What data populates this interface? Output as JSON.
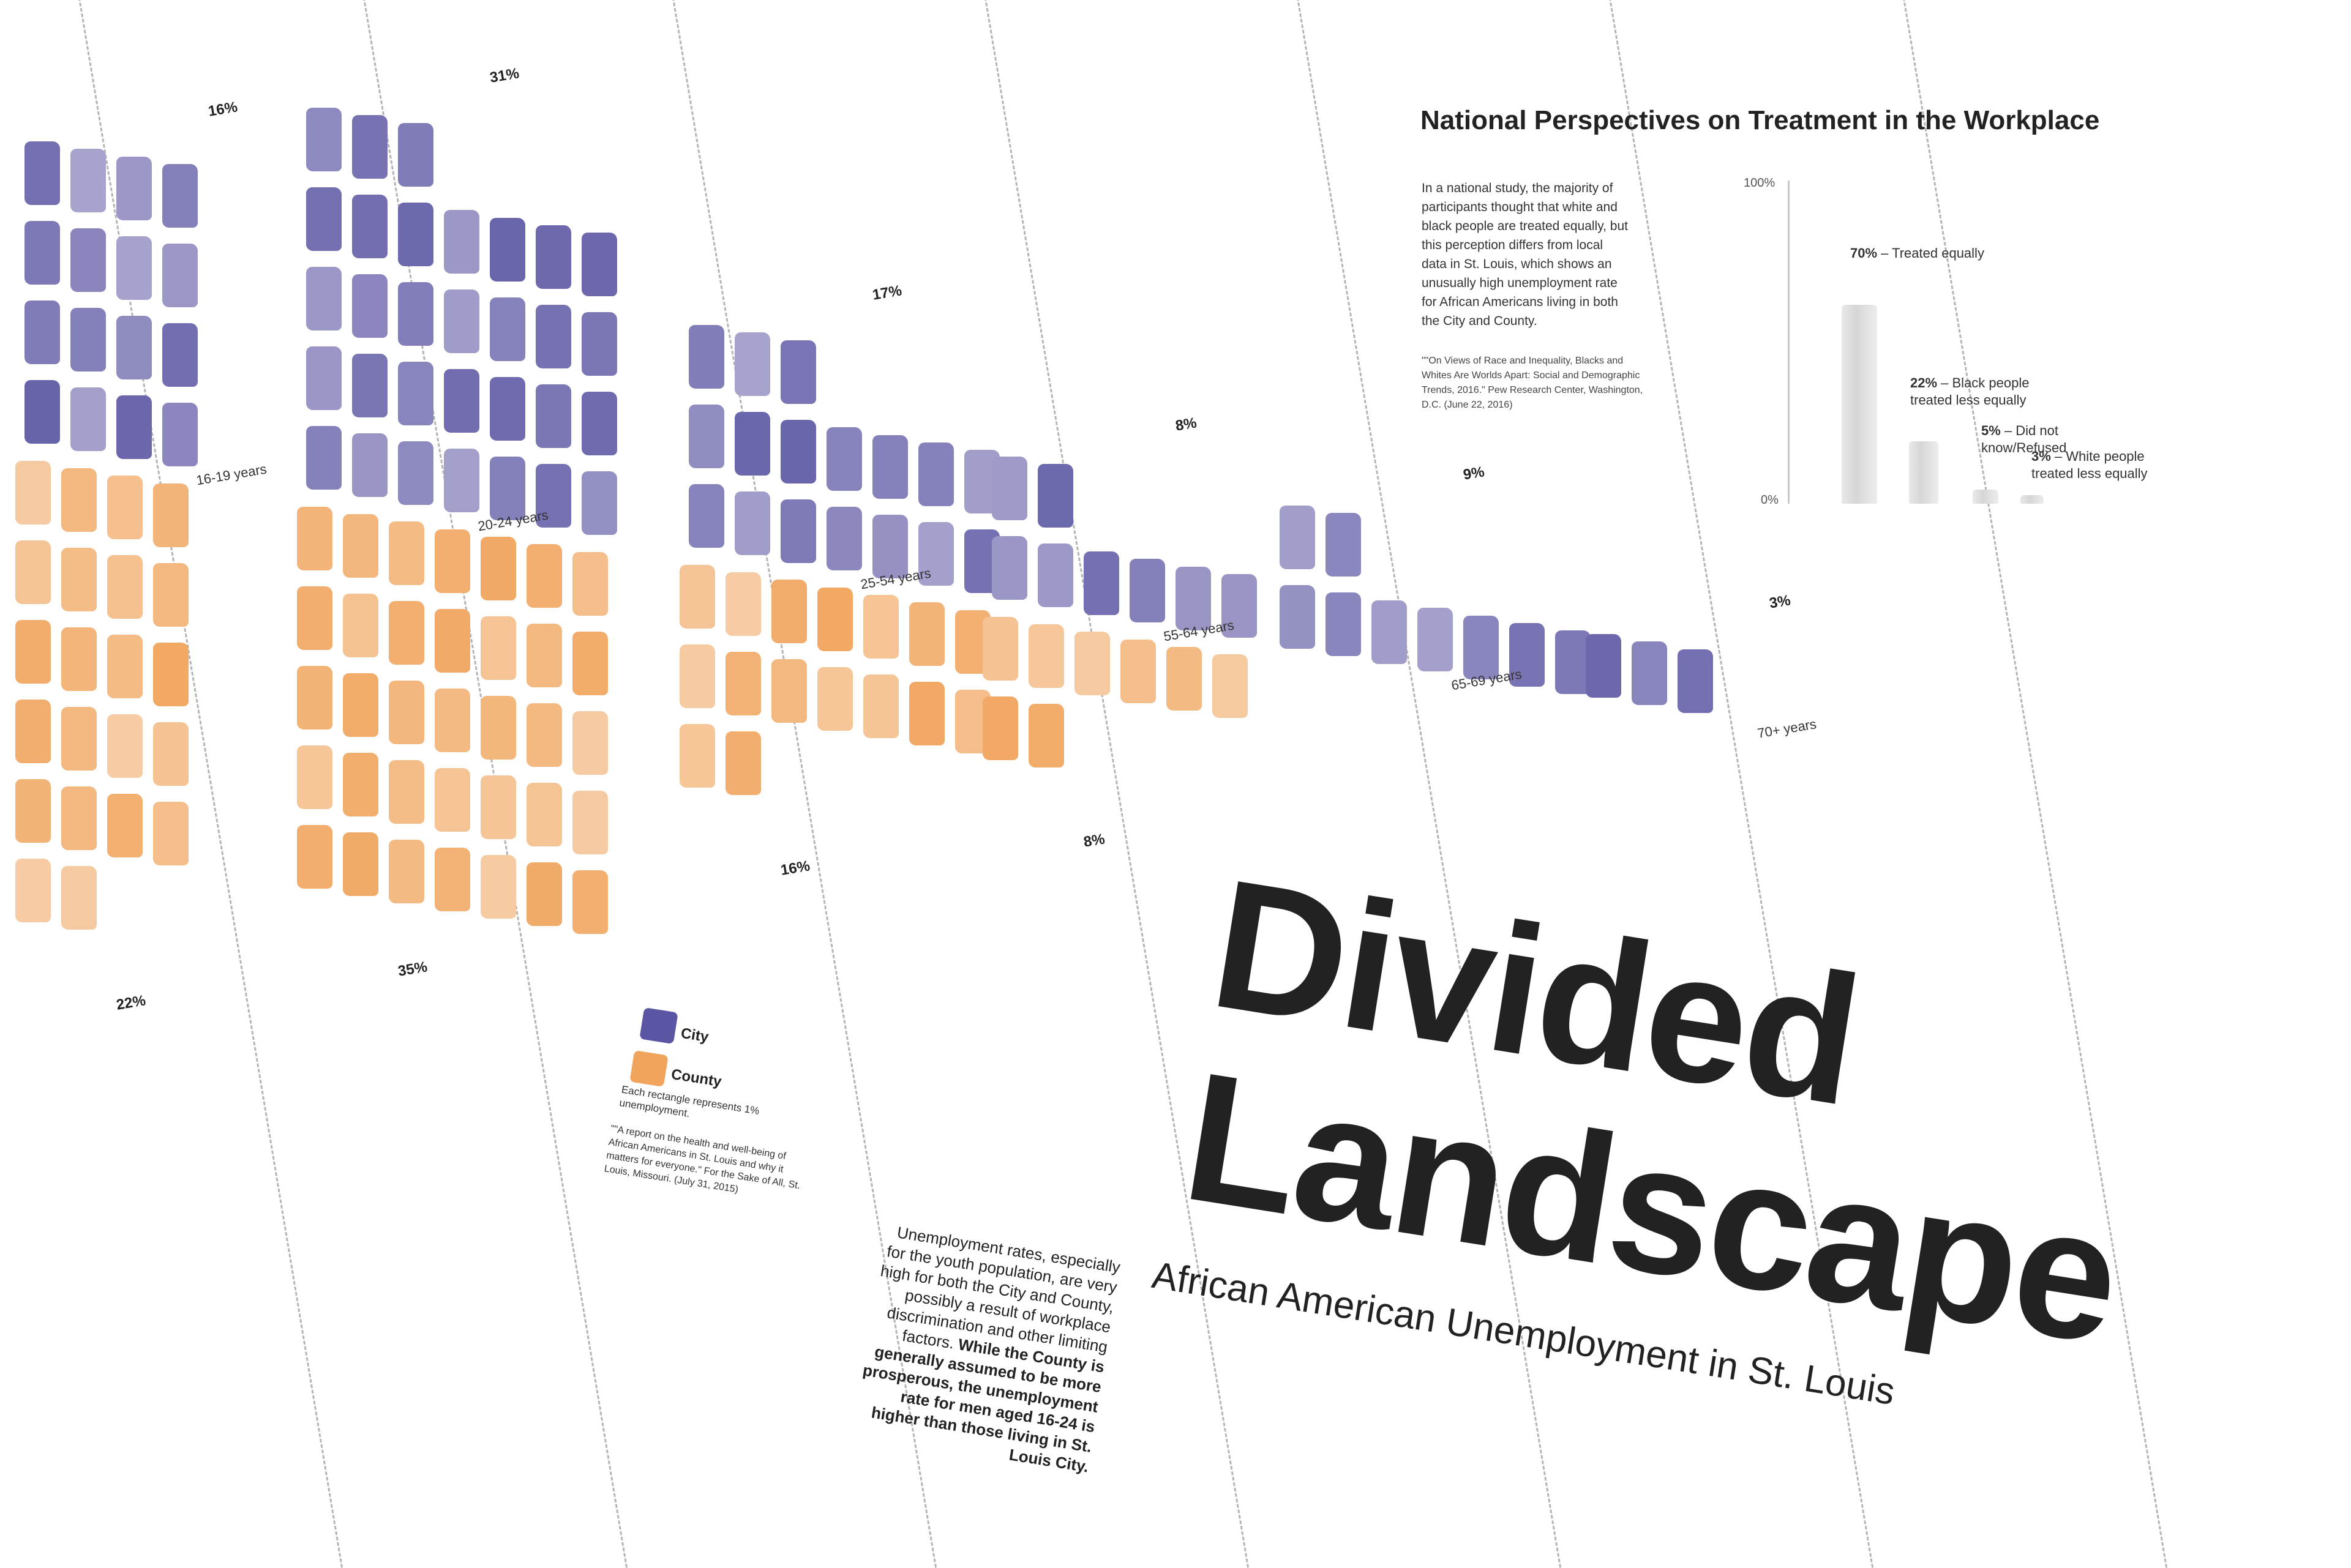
{
  "title": {
    "line1": "Divided",
    "line2": "Landscape",
    "subtitle": "African American Unemployment in St. Louis"
  },
  "national": {
    "title": "National Perspectives on Treatment in the Workplace",
    "body": "In a national study, the majority of participants thought that white and black people are treated equally, but this perception differs from local data in St. Louis, which shows an unusually high unemployment rate for African Americans living in both the City and County.",
    "source": "\"\"On Views of Race and Inequality, Blacks and Whites Are Worlds Apart: Social and Demographic Trends, 2016.\" Pew Research Center, Washington, D.C. (June 22, 2016)",
    "axis_top": "100%",
    "axis_bottom": "0%",
    "items": [
      {
        "pct": "70%",
        "label": "Treated equally",
        "value": 70
      },
      {
        "pct": "22%",
        "label": "Black people treated less equally",
        "value": 22
      },
      {
        "pct": "5%",
        "label": "Did not know/Refused",
        "value": 5
      },
      {
        "pct": "3%",
        "label": "White people treated less equally",
        "value": 3
      }
    ]
  },
  "legend": {
    "city": "City",
    "county": "County",
    "note": "Each rectangle represents 1% unemployment.",
    "source": "\"\"A report on the health and well-being of African Americans in St. Louis and why it matters for everyone.\" For the Sake of All, St. Louis, Missouri. (July 31, 2015)"
  },
  "paragraph": {
    "plain": "Unemployment rates, especially for the youth population, are very high for both the City and County, possibly a result of workplace discrimination and other limiting factors.",
    "bold": "While the County is generally assumed to be more prosperous, the unemployment rate for men aged 16-24 is higher than those living in St. Louis City."
  },
  "colors": {
    "city": "#5b56a3",
    "county": "#f0a45c",
    "text": "#222222"
  },
  "chart_data": {
    "type": "bar",
    "title": "",
    "categories": [
      "16-19 years",
      "20-24 years",
      "25-54 years",
      "55-64 years",
      "65-69 years",
      "70+ years"
    ],
    "series": [
      {
        "name": "City",
        "values": [
          16,
          31,
          17,
          8,
          9,
          3
        ],
        "labels": [
          "16%",
          "31%",
          "17%",
          "8%",
          "9%",
          "3%"
        ]
      },
      {
        "name": "County",
        "values": [
          22,
          35,
          16,
          8,
          0,
          0
        ],
        "labels": [
          "22%",
          "35%",
          "16%",
          "8%",
          "",
          ""
        ]
      }
    ]
  }
}
